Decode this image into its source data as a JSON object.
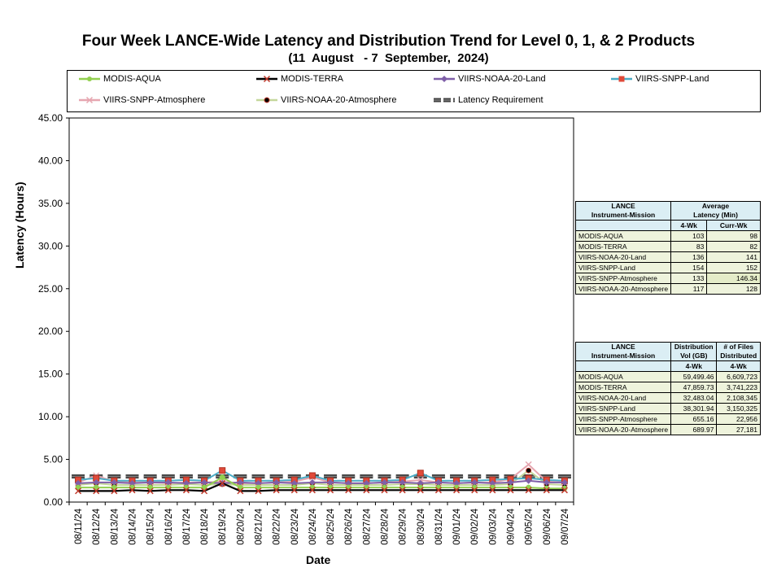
{
  "chart_data": {
    "type": "line",
    "title": "Four Week LANCE-Wide Latency and Distribution Trend for Level 0, 1, & 2 Products",
    "subtitle": "(11  August   - 7  September,  2024)",
    "xlabel": "Date",
    "ylabel": "Latency (Hours)",
    "ylim": [
      0,
      45
    ],
    "y_ticks": [
      "0.00",
      "5.00",
      "10.00",
      "15.00",
      "20.00",
      "25.00",
      "30.00",
      "35.00",
      "40.00",
      "45.00"
    ],
    "grid": false,
    "legend_position": "top",
    "x": [
      "08/11/24",
      "08/12/24",
      "08/13/24",
      "08/14/24",
      "08/15/24",
      "08/16/24",
      "08/17/24",
      "08/18/24",
      "08/19/24",
      "08/20/24",
      "08/21/24",
      "08/22/24",
      "08/23/24",
      "08/24/24",
      "08/25/24",
      "08/26/24",
      "08/27/24",
      "08/28/24",
      "08/29/24",
      "08/30/24",
      "08/31/24",
      "09/01/24",
      "09/02/24",
      "09/03/24",
      "09/04/24",
      "09/05/24",
      "09/06/24",
      "09/07/24"
    ],
    "series": [
      {
        "name": "MODIS-AQUA",
        "color": "#92d050",
        "marker": "circle",
        "values": [
          1.7,
          1.7,
          1.7,
          1.7,
          1.7,
          1.7,
          1.7,
          1.7,
          2.9,
          1.7,
          1.7,
          1.7,
          1.7,
          1.7,
          1.7,
          1.7,
          1.7,
          1.7,
          1.7,
          1.7,
          1.7,
          1.7,
          1.7,
          1.7,
          1.7,
          1.7,
          1.6,
          1.6
        ]
      },
      {
        "name": "MODIS-TERRA",
        "color": "#000000",
        "marker": "x",
        "values": [
          1.3,
          1.3,
          1.3,
          1.4,
          1.3,
          1.4,
          1.4,
          1.3,
          2.2,
          1.3,
          1.3,
          1.4,
          1.4,
          1.4,
          1.4,
          1.4,
          1.4,
          1.4,
          1.4,
          1.4,
          1.4,
          1.4,
          1.4,
          1.4,
          1.4,
          1.4,
          1.4,
          1.4
        ]
      },
      {
        "name": "VIIRS-NOAA-20-Land",
        "color": "#7f5fa8",
        "marker": "diamond",
        "values": [
          2.2,
          2.3,
          2.3,
          2.2,
          2.3,
          2.3,
          2.2,
          2.3,
          2.2,
          2.3,
          2.2,
          2.3,
          2.2,
          2.3,
          2.3,
          2.2,
          2.2,
          2.3,
          2.3,
          2.2,
          2.3,
          2.2,
          2.3,
          2.2,
          2.3,
          2.5,
          2.3,
          2.3
        ]
      },
      {
        "name": "VIIRS-SNPP-Land",
        "color": "#4bacc6",
        "marker": "square",
        "values": [
          2.6,
          2.8,
          2.5,
          2.5,
          2.5,
          2.5,
          2.6,
          2.5,
          3.7,
          2.5,
          2.5,
          2.5,
          2.6,
          3.1,
          2.5,
          2.5,
          2.5,
          2.5,
          2.6,
          3.4,
          2.5,
          2.5,
          2.5,
          2.6,
          2.7,
          2.8,
          2.6,
          2.5
        ]
      },
      {
        "name": "VIIRS-SNPP-Atmosphere",
        "color": "#e6a6b0",
        "marker": "x",
        "values": [
          2.3,
          3.1,
          2.4,
          2.3,
          2.3,
          2.2,
          2.3,
          2.3,
          2.4,
          2.2,
          2.2,
          2.3,
          2.4,
          2.9,
          2.3,
          2.2,
          2.2,
          2.3,
          2.4,
          2.6,
          2.3,
          2.2,
          2.3,
          2.3,
          2.7,
          4.4,
          2.4,
          2.3
        ]
      },
      {
        "name": "VIIRS-NOAA-20-Atmosphere",
        "color": "#c4d79b",
        "marker": "dot",
        "values": [
          2.0,
          2.2,
          2.0,
          2.0,
          2.0,
          2.0,
          2.1,
          2.0,
          2.1,
          2.0,
          2.0,
          2.0,
          2.0,
          2.2,
          2.0,
          2.0,
          2.0,
          2.0,
          2.1,
          2.1,
          2.0,
          2.0,
          2.0,
          2.0,
          2.1,
          3.7,
          2.1,
          2.0
        ]
      },
      {
        "name": "Latency Requirement",
        "color": "#3f3f3f",
        "marker": "dash",
        "values": [
          3.0,
          3.0,
          3.0,
          3.0,
          3.0,
          3.0,
          3.0,
          3.0,
          3.0,
          3.0,
          3.0,
          3.0,
          3.0,
          3.0,
          3.0,
          3.0,
          3.0,
          3.0,
          3.0,
          3.0,
          3.0,
          3.0,
          3.0,
          3.0,
          3.0,
          3.0,
          3.0,
          3.0
        ]
      }
    ]
  },
  "latency_table": {
    "h1": "LANCE",
    "h2": "Instrument-Mission",
    "h3": "Average",
    "h4": "Latency (Min)",
    "c1": "4-Wk",
    "c2": "Curr-Wk",
    "rows": [
      {
        "name": "MODIS-AQUA",
        "a": "103",
        "b": "98"
      },
      {
        "name": "MODIS-TERRA",
        "a": "83",
        "b": "82"
      },
      {
        "name": "VIIRS-NOAA-20-Land",
        "a": "136",
        "b": "141"
      },
      {
        "name": "VIIRS-SNPP-Land",
        "a": "154",
        "b": "152"
      },
      {
        "name": "VIIRS-SNPP-Atmosphere",
        "a": "133",
        "b": "146.34"
      },
      {
        "name": "VIIRS-NOAA-20-Atmosphere",
        "a": "117",
        "b": "128"
      }
    ]
  },
  "dist_table": {
    "h1": "LANCE",
    "h2": "Instrument-Mission",
    "h3": "Distribution",
    "h4": "Vol (GB)",
    "h5": "# of Files",
    "h6": "Distributed",
    "c1": "4-Wk",
    "c2": "4-Wk",
    "rows": [
      {
        "name": "MODIS-AQUA",
        "a": "59,499.46",
        "b": "6,609,723"
      },
      {
        "name": "MODIS-TERRA",
        "a": "47,859.73",
        "b": "3,741,223"
      },
      {
        "name": "VIIRS-NOAA-20-Land",
        "a": "32,483.04",
        "b": "2,108,345"
      },
      {
        "name": "VIIRS-SNPP-Land",
        "a": "38,301.94",
        "b": "3,150,325"
      },
      {
        "name": "VIIRS-SNPP-Atmosphere",
        "a": "655.16",
        "b": "22,956"
      },
      {
        "name": "VIIRS-NOAA-20-Atmosphere",
        "a": "689.97",
        "b": "27,181"
      }
    ]
  }
}
